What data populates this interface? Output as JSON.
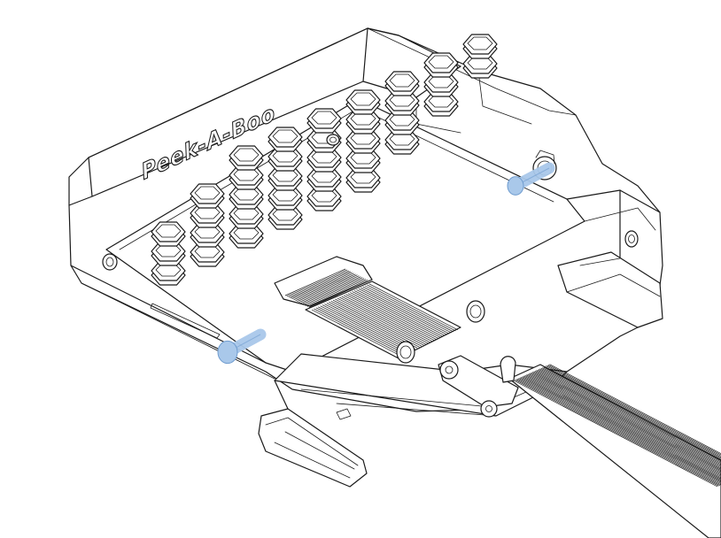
{
  "figure": {
    "logo_text": "Peek-A-Boo"
  },
  "colors": {
    "line": "#1a1a1a",
    "background": "#ffffff",
    "highlight_fill": "#a9c8ea",
    "highlight_stroke": "#6f9ccf"
  },
  "parts": {
    "hex_button_count": 36,
    "highlighted_screws": 2,
    "ribbon_cables": 2
  }
}
